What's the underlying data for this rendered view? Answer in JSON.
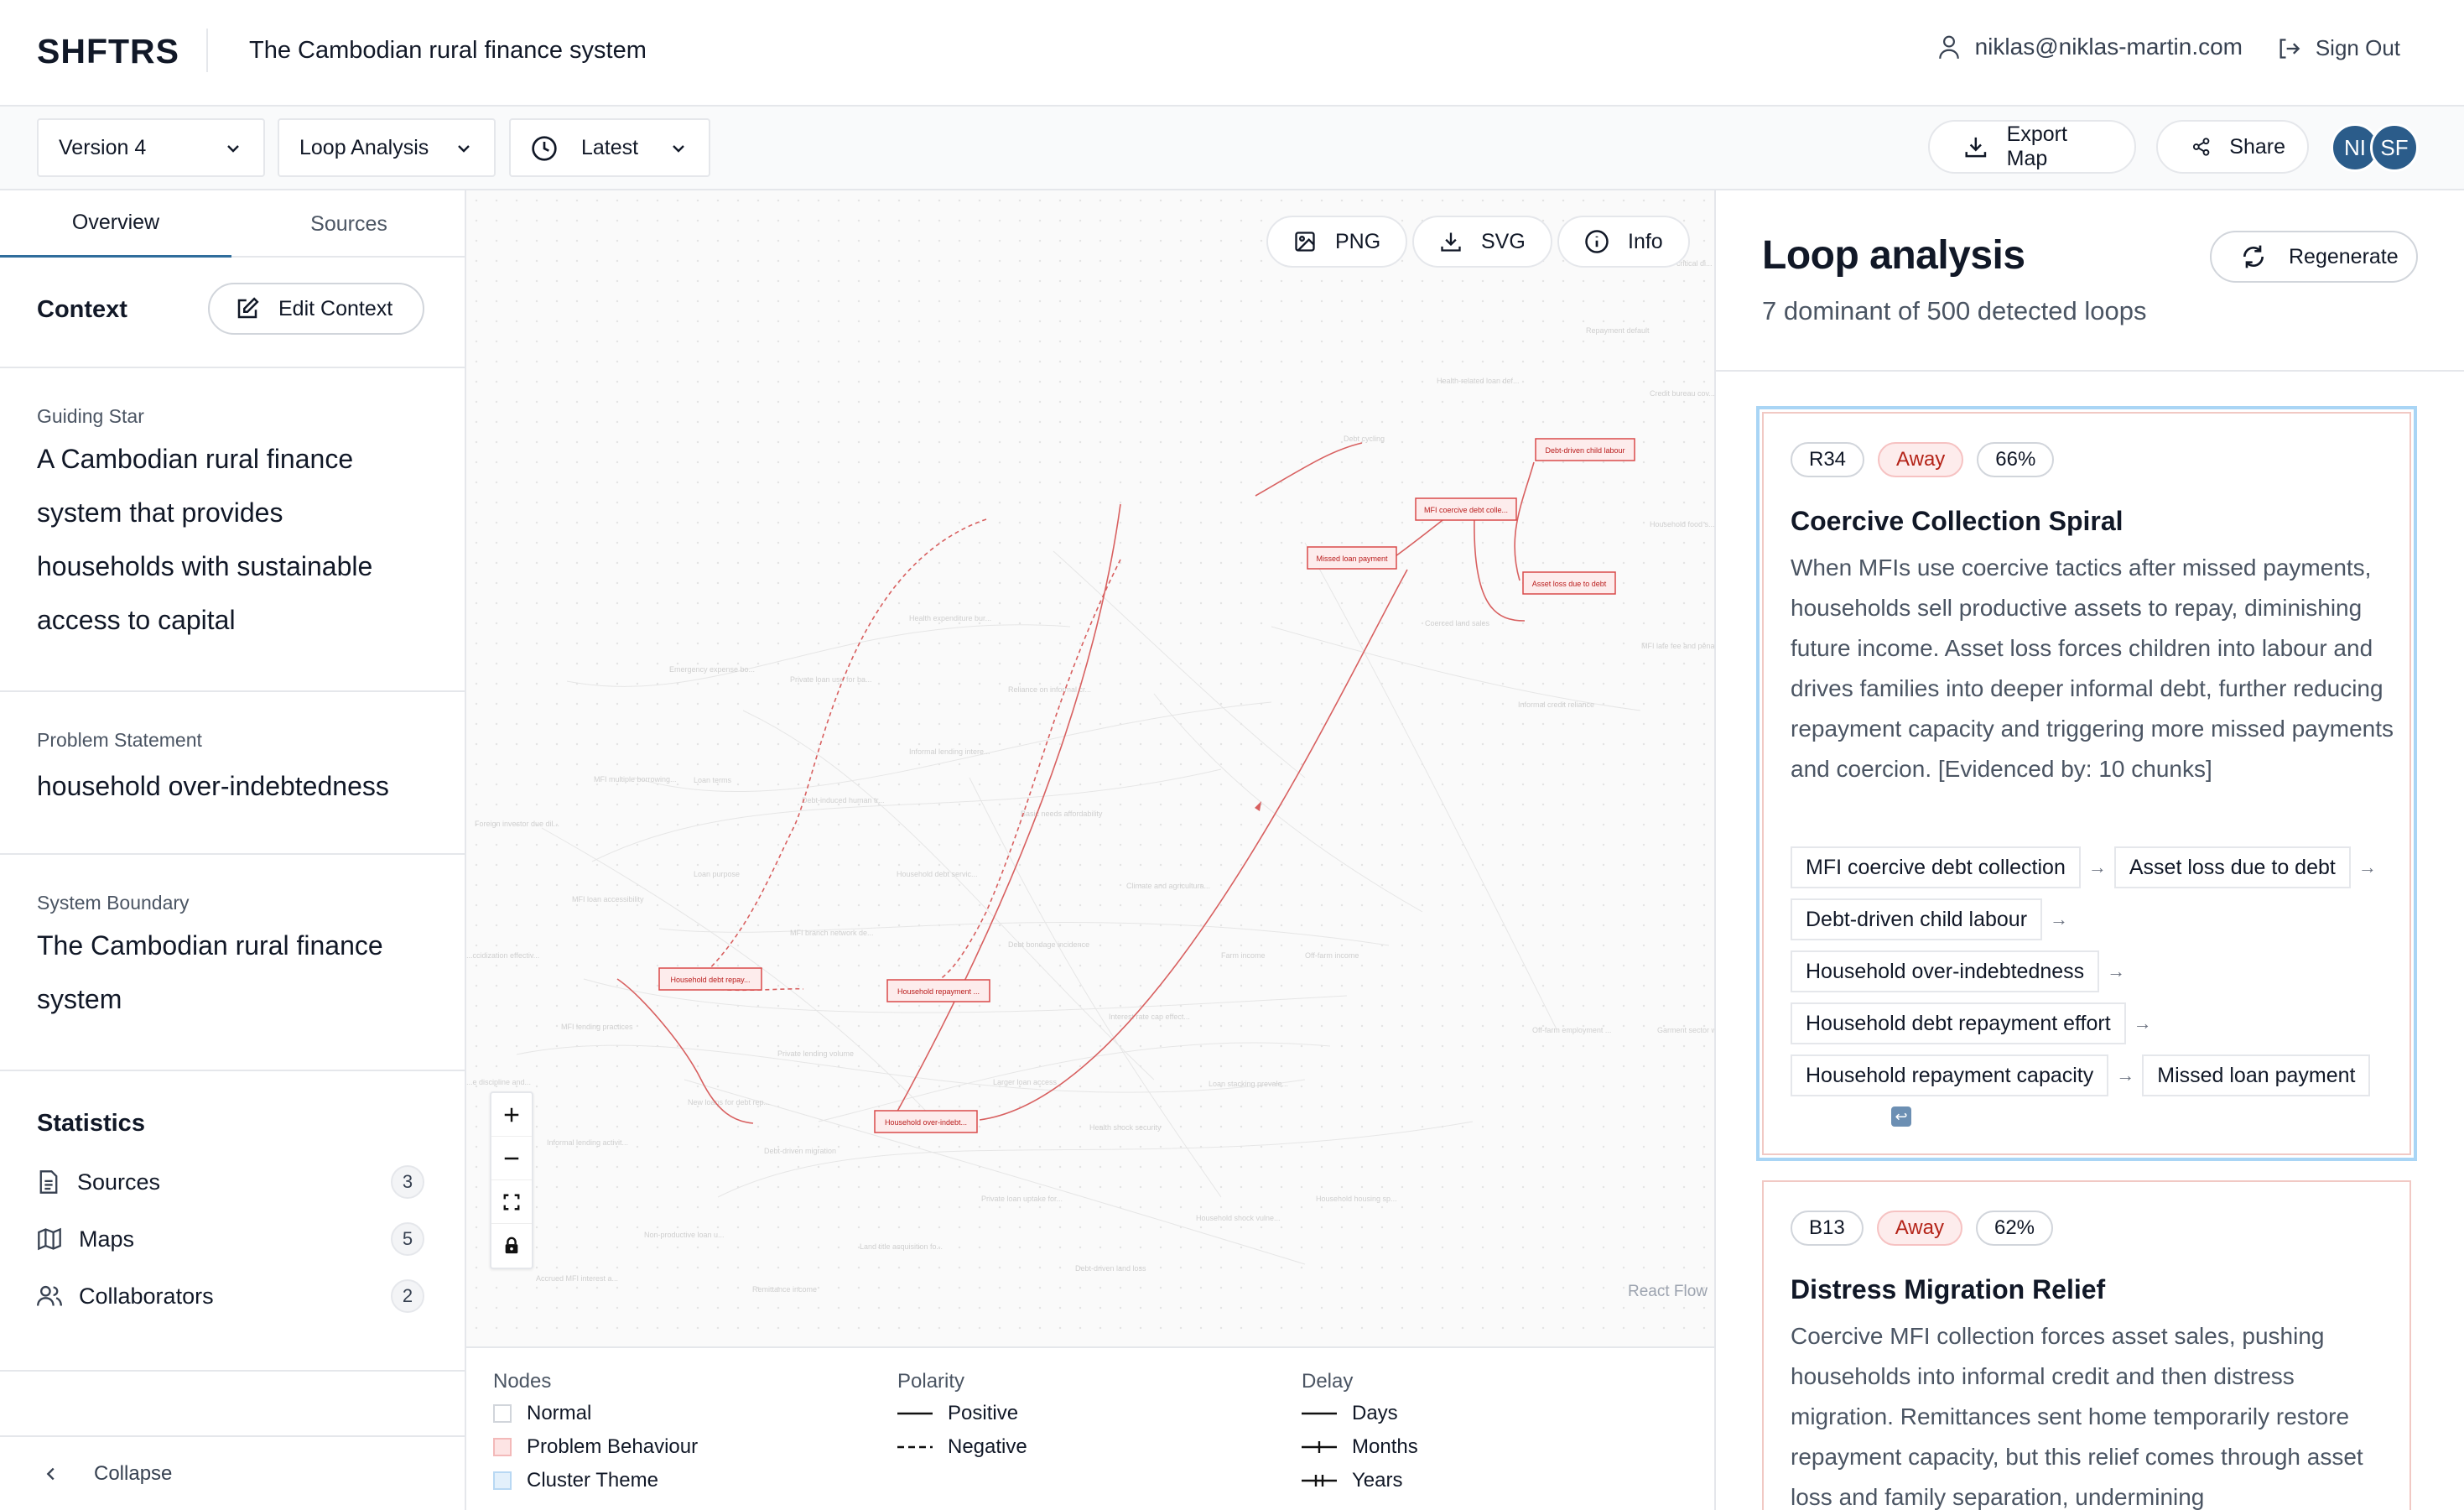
{
  "header": {
    "brand": "SHFTRS",
    "project_title": "The Cambodian rural finance system",
    "user_email": "niklas@niklas-martin.com",
    "sign_out": "Sign Out"
  },
  "toolbar": {
    "version": "Version 4",
    "analysis": "Loop Analysis",
    "time": "Latest",
    "export": "Export Map",
    "share": "Share",
    "avatars": [
      "NI",
      "SF"
    ]
  },
  "sidebar": {
    "tabs": [
      "Overview",
      "Sources"
    ],
    "context_label": "Context",
    "edit_context": "Edit Context",
    "guiding_star_label": "Guiding Star",
    "guiding_star_lines": [
      "A Cambodian rural finance",
      "system that provides",
      "households with sustainable",
      "access to capital"
    ],
    "problem_label": "Problem Statement",
    "problem_text": "household over-indebtedness",
    "boundary_label": "System Boundary",
    "boundary_lines": [
      "The Cambodian rural finance",
      "system"
    ],
    "statistics_label": "Statistics",
    "stats": [
      {
        "label": "Sources",
        "count": "3",
        "icon": "document-icon"
      },
      {
        "label": "Maps",
        "count": "5",
        "icon": "map-icon"
      },
      {
        "label": "Collaborators",
        "count": "2",
        "icon": "users-icon"
      }
    ],
    "collapse": "Collapse"
  },
  "canvas": {
    "png": "PNG",
    "svg": "SVG",
    "info": "Info",
    "attribution": "React Flow",
    "highlighted_nodes": [
      "Debt-driven child labour",
      "MFI coercive debt colle...",
      "Missed loan payment",
      "Asset loss due to debt",
      "Household debt repay...",
      "Household repayment ...",
      "Household over-indebt..."
    ],
    "ghost_nodes": [
      "Repayment default",
      "Health-related loan def...",
      "Credit bureau cov...",
      "Debt cycling",
      "Household food s...",
      "Health expenditure bur...",
      "Coerced land sales",
      "MFI late fee and penal...",
      "Emergency expense bo...",
      "Private loan use for ba...",
      "Reliance on informal cr...",
      "Informal credit reliance",
      "Informal lending intere...",
      "MFI multiple borrowing...",
      "Loan terms",
      "Debt-induced human tr...",
      "Basic needs affordability",
      "Foreign investor due dil...",
      "Loan purpose",
      "Household debt servic...",
      "Climate and agricultura...",
      "MFI loan accessibility",
      "MFI branch network de...",
      "Off-farm income",
      "Debt bondage incidence",
      "Farm income",
      "...ccidization effectiv...",
      "MFI lending practices",
      "Interest rate cap effect...",
      "Off-farm employment ...",
      "Garment sector w...",
      "Private lending volume",
      "Larger loan access",
      "Loan stacking prevale...",
      "...e discipline and...",
      "New loans for debt rep...",
      "Health shock security",
      "Informal lending activit...",
      "Debt-driven migration",
      "Private loan uptake for...",
      "Household housing sp...",
      "Household shock vulne...",
      "Non-productive loan u...",
      "Land title acquisition fo...",
      "Debt-driven land loss",
      "Accrued MFI interest a...",
      "Remittance income",
      "...t or critical di..."
    ]
  },
  "legend": {
    "nodes_title": "Nodes",
    "nodes": [
      "Normal",
      "Problem Behaviour",
      "Cluster Theme"
    ],
    "polarity_title": "Polarity",
    "polarity": [
      "Positive",
      "Negative"
    ],
    "delay_title": "Delay",
    "delay": [
      "Days",
      "Months",
      "Years"
    ],
    "colors": {
      "normal": "#ffffff",
      "problem": "#fde4e4",
      "cluster": "#e3f0fb"
    }
  },
  "right_panel": {
    "title": "Loop analysis",
    "subtitle": "7 dominant of 500 detected loops",
    "regenerate": "Regenerate",
    "loops": [
      {
        "id": "R34",
        "direction": "Away",
        "strength": "66%",
        "title": "Coercive Collection Spiral",
        "description": "When MFIs use coercive tactics after missed payments, households sell productive assets to repay, diminishing future income. Asset loss forces children into labour and drives families into deeper informal debt, further reducing repayment capacity and triggering more missed payments and coercion. [Evidenced by: 10 chunks]",
        "chain": [
          "MFI coercive debt collection",
          "Asset loss due to debt",
          "Debt-driven child labour",
          "Household over-indebtedness",
          "Household debt repayment effort",
          "Household repayment capacity",
          "Missed loan payment"
        ],
        "arrow": "→",
        "loop_back": "↩"
      },
      {
        "id": "B13",
        "direction": "Away",
        "strength": "62%",
        "title": "Distress Migration Relief",
        "description": "Coercive MFI collection forces asset sales, pushing households into informal credit and then distress migration. Remittances sent home temporarily restore repayment capacity, but this relief comes through asset loss and family separation, undermining"
      }
    ]
  }
}
